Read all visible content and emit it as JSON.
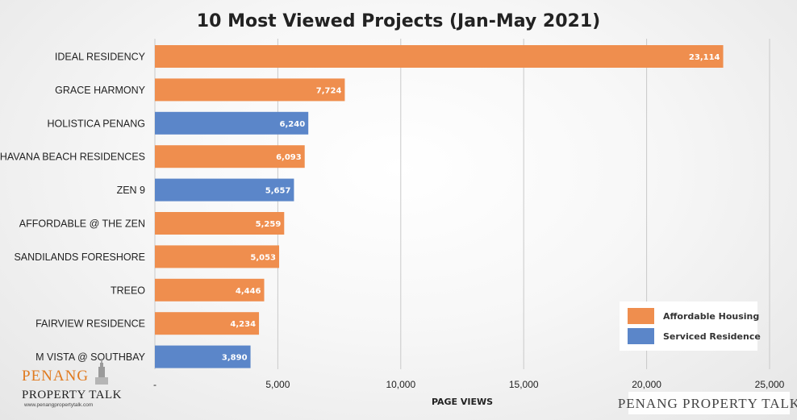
{
  "chart_data": {
    "type": "bar",
    "orientation": "horizontal",
    "title": "10 Most Viewed Projects (Jan-May 2021)",
    "xlabel": "PAGE VIEWS",
    "ylabel": "",
    "xlim": [
      0,
      25000
    ],
    "x_ticks": [
      0,
      5000,
      10000,
      15000,
      20000,
      25000
    ],
    "x_tick_labels": [
      "-",
      "5,000",
      "10,000",
      "15,000",
      "20,000",
      "25,000"
    ],
    "grid": "vertical",
    "legend_position": "bottom-right",
    "categories": [
      "IDEAL RESIDENCY",
      "GRACE HARMONY",
      "HOLISTICA PENANG",
      "HAVANA BEACH RESIDENCES",
      "ZEN 9",
      "AFFORDABLE @ THE ZEN",
      "SANDILANDS FORESHORE",
      "TREEO",
      "FAIRVIEW RESIDENCE",
      "M VISTA @ SOUTHBAY"
    ],
    "values": [
      23114,
      7724,
      6240,
      6093,
      5657,
      5259,
      5053,
      4446,
      4234,
      3890
    ],
    "value_labels": [
      "23,114",
      "7,724",
      "6,240",
      "6,093",
      "5,657",
      "5,259",
      "5,053",
      "4,446",
      "4,234",
      "3,890"
    ],
    "bar_series": [
      0,
      0,
      1,
      0,
      1,
      0,
      0,
      0,
      0,
      1
    ],
    "series": [
      {
        "name": "Affordable Housing",
        "color": "#ef8e4e"
      },
      {
        "name": "Serviced Residence",
        "color": "#5b86c9"
      }
    ]
  },
  "branding": {
    "logo_line1": "PENANG",
    "logo_line2": "PROPERTY TALK",
    "logo_url": "www.penangpropertytalk.com",
    "watermark": "PENANG PROPERTY TALK",
    "logo_color": "#e07a1f"
  }
}
